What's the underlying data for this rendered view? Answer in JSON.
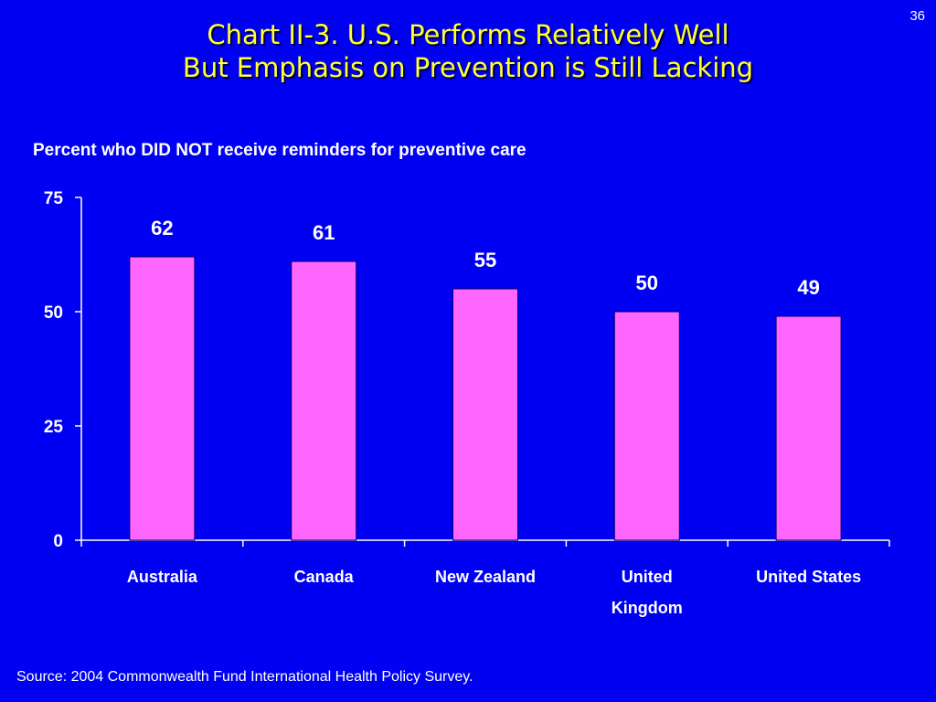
{
  "page_number": "36",
  "title_line1": "Chart II-3. U.S. Performs Relatively Well",
  "title_line2": "But Emphasis on Prevention is Still Lacking",
  "source": "Source: 2004 Commonwealth Fund International Health Policy Survey.",
  "colors": {
    "background": "#0000F2",
    "title": "#FFFF33",
    "bar_fill": "#FF66FF",
    "text": "#FFFFFF"
  },
  "chart_data": {
    "type": "bar",
    "title": "Percent who DID NOT receive reminders for preventive care",
    "categories": [
      [
        "Australia"
      ],
      [
        "Canada"
      ],
      [
        "New Zealand"
      ],
      [
        "United",
        "Kingdom"
      ],
      [
        "United States"
      ]
    ],
    "values": [
      62,
      61,
      55,
      50,
      49
    ],
    "data_labels": [
      "62",
      "61",
      "55",
      "50",
      "49"
    ],
    "ylim": [
      0,
      75
    ],
    "yticks": [
      0,
      25,
      50,
      75
    ],
    "xlabel": "",
    "ylabel": "",
    "grid": false,
    "legend": "none"
  }
}
